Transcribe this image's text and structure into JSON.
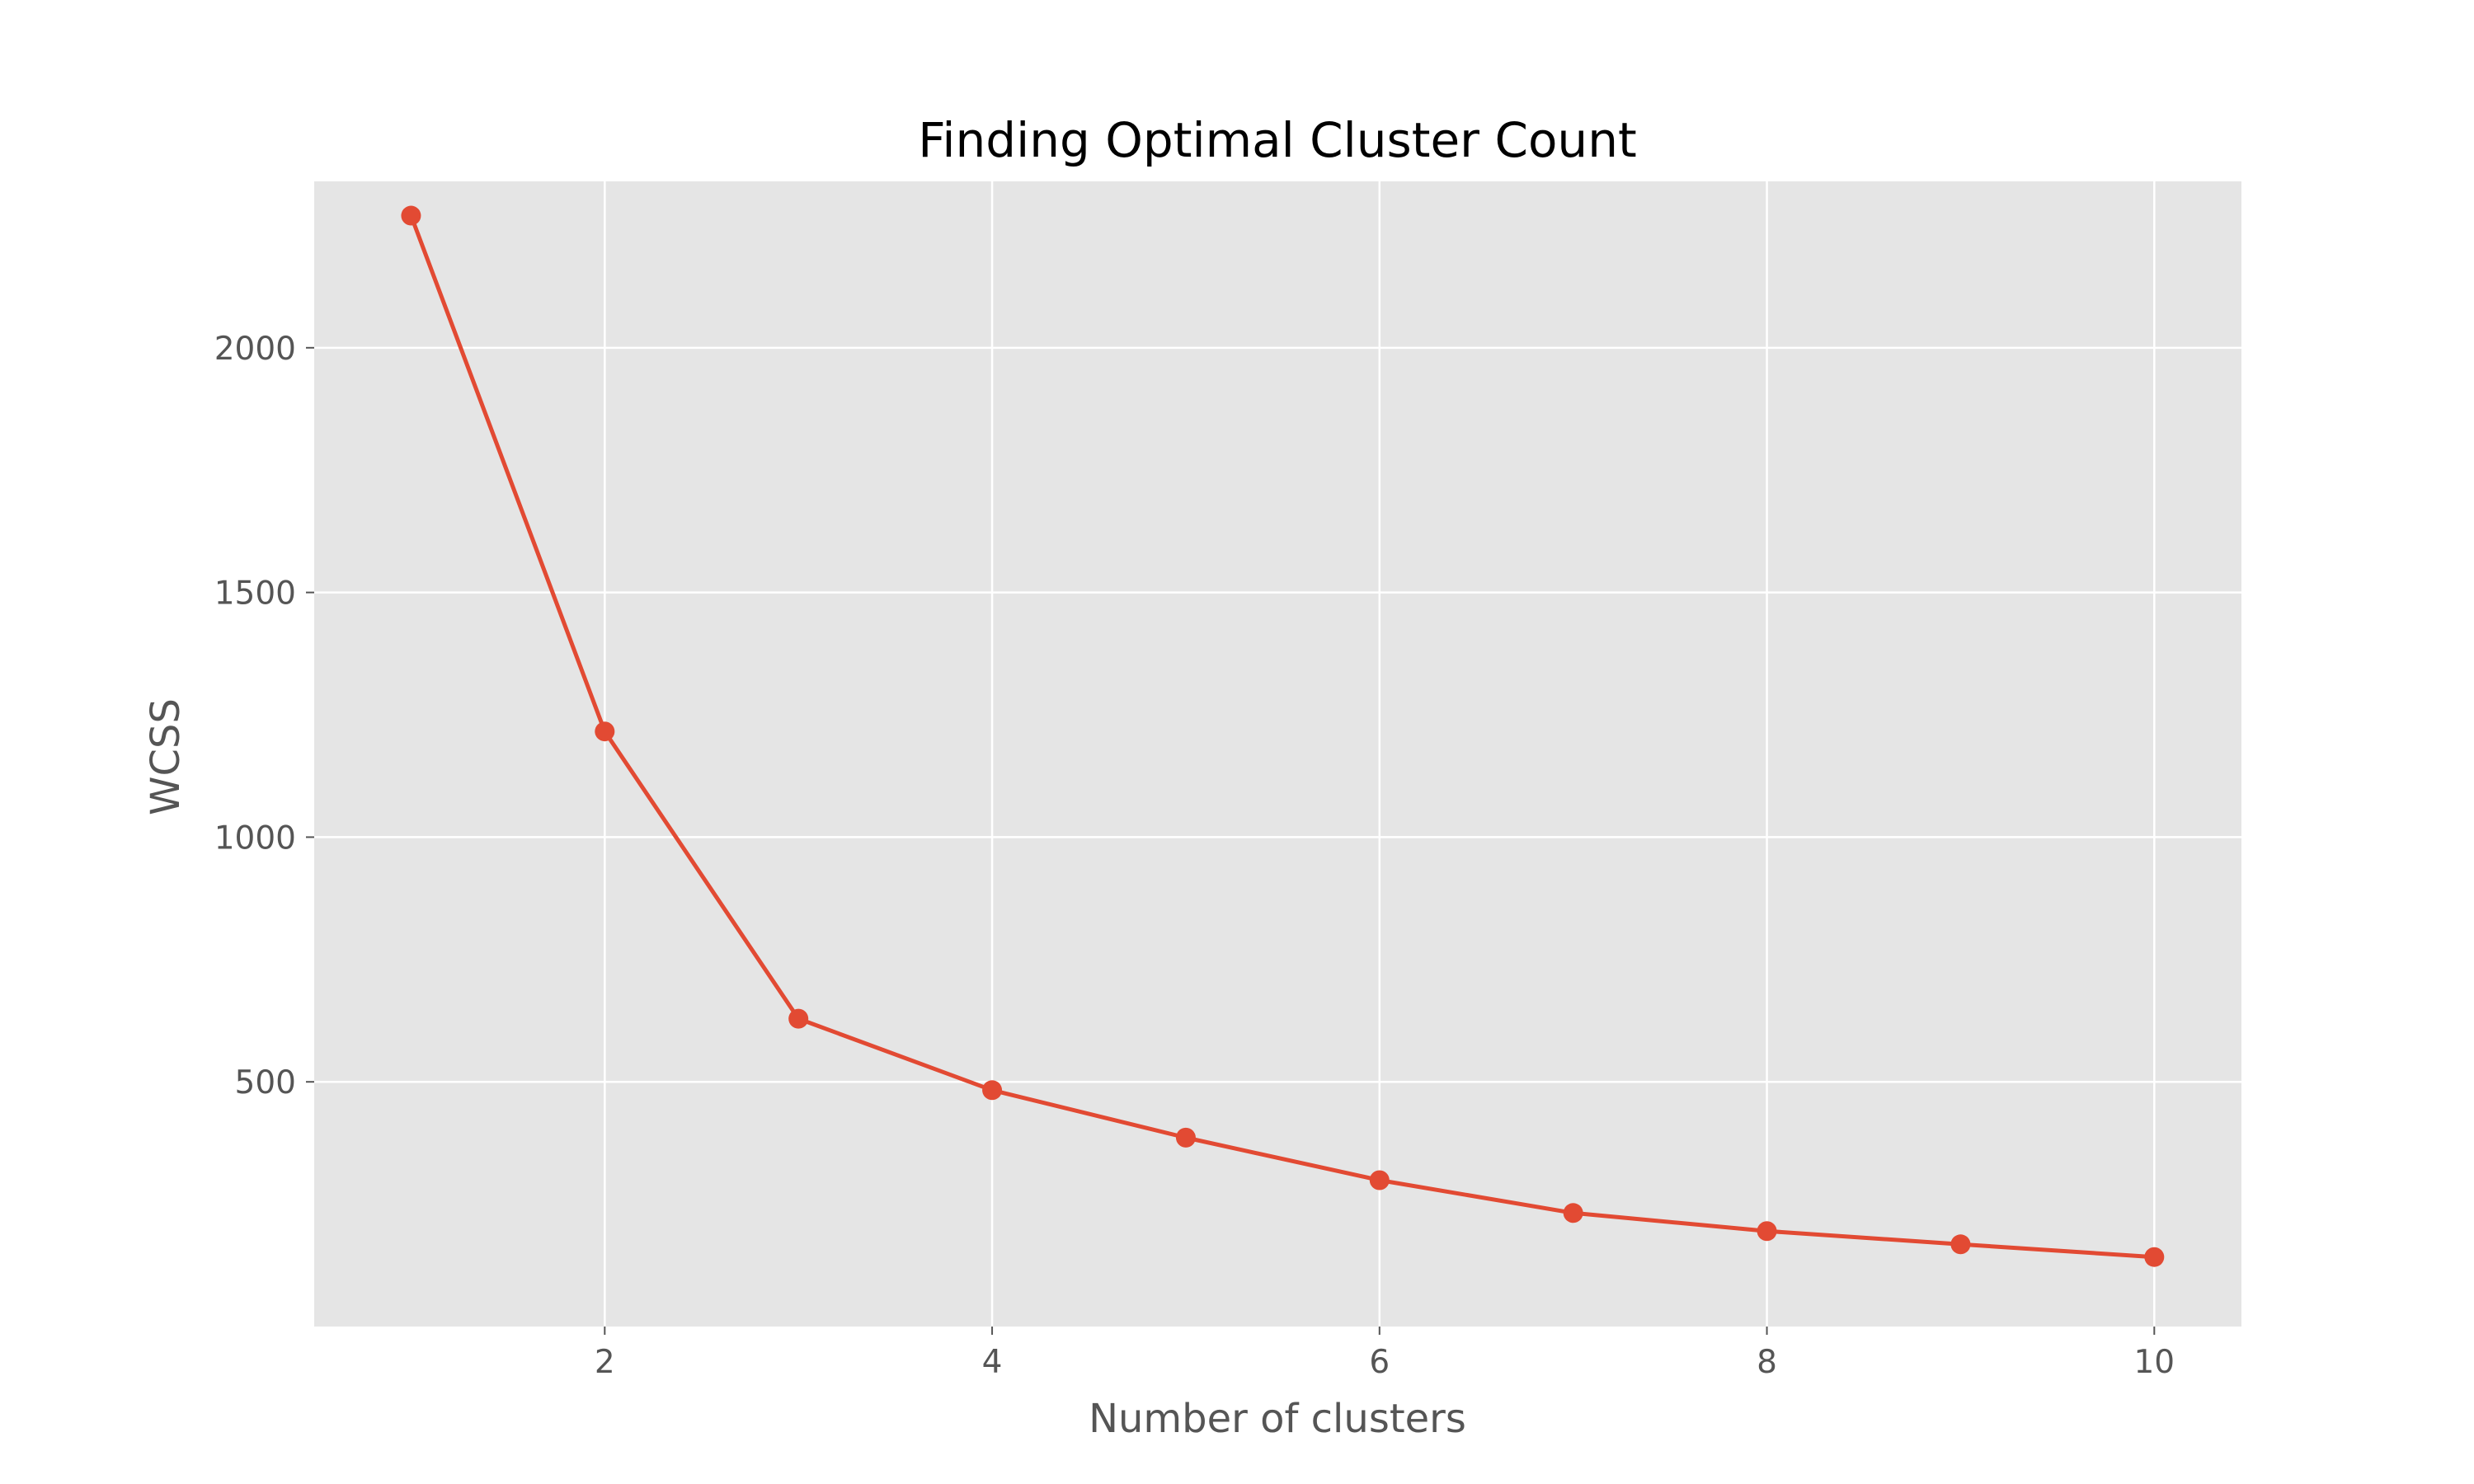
{
  "chart_data": {
    "type": "line",
    "title": "Finding Optimal Cluster Count",
    "xlabel": "Number of clusters",
    "ylabel": "WCSS",
    "x": [
      1,
      2,
      3,
      4,
      5,
      6,
      7,
      8,
      9,
      10
    ],
    "series": [
      {
        "name": "",
        "values": [
          2270,
          1216,
          629,
          483,
          386,
          299,
          232,
          195,
          168,
          142
        ],
        "color": "#e24a33",
        "marker": "circle"
      }
    ],
    "xlim": [
      0.5,
      10.45
    ],
    "ylim": [
      0,
      2340
    ],
    "xticks": [
      2,
      4,
      6,
      8,
      10
    ],
    "xtick_labels": [
      "2",
      "4",
      "6",
      "8",
      "10"
    ],
    "yticks": [
      500,
      1000,
      1500,
      2000
    ],
    "ytick_labels": [
      "500",
      "1000",
      "1500",
      "2000"
    ],
    "grid": true,
    "legend": "none",
    "style": {
      "plot_background": "#e5e5e5",
      "grid_color": "#ffffff",
      "tick_color": "#555555",
      "text_color": "#555555",
      "title_color": "#000000"
    }
  }
}
